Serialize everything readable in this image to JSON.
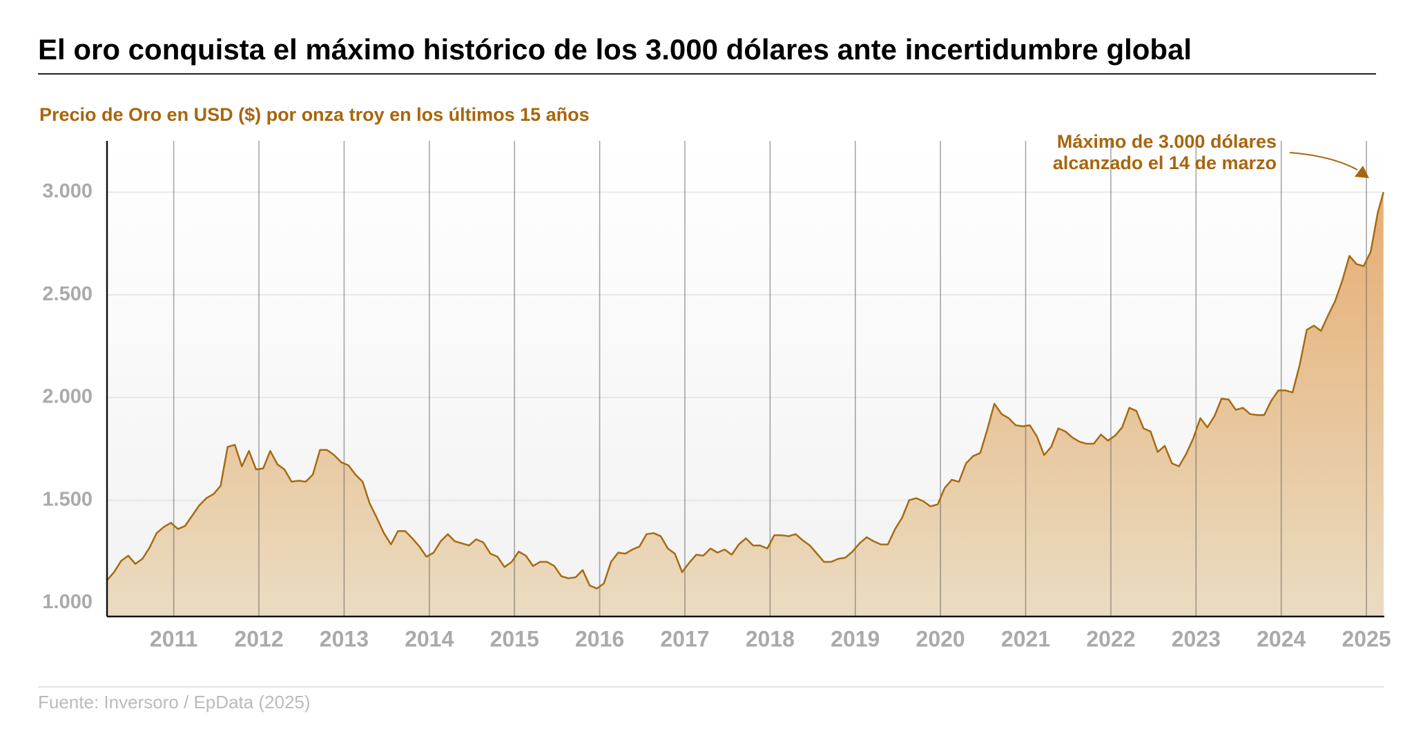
{
  "chart_data": {
    "type": "area",
    "title": "El oro conquista el máximo histórico de los 3.000 dólares ante incertidumbre global",
    "subtitle": "Precio de Oro en USD ($) por onza troy en los últimos 15 años",
    "annotation": [
      "Máximo de 3.000 dólares",
      "alcanzado el 14 de marzo"
    ],
    "source": "Fuente: Inversoro / EpData (2025)",
    "color": "#a66a10",
    "grid": true,
    "xlim": [
      2010.217,
      2025.21
    ],
    "xticks": [
      2011,
      2012,
      2013,
      2014,
      2015,
      2016,
      2017,
      2018,
      2019,
      2020,
      2021,
      2022,
      2023,
      2024,
      2025
    ],
    "ylim": [
      934,
      3250
    ],
    "yticks": [
      {
        "value": 1000,
        "label": "1.000"
      },
      {
        "value": 1500,
        "label": "1.500"
      },
      {
        "value": 2000,
        "label": "2.000"
      },
      {
        "value": 2500,
        "label": "2.500"
      },
      {
        "value": 3000,
        "label": "3.000"
      }
    ],
    "x": [
      2010.217,
      2010.3,
      2010.383,
      2010.467,
      2010.55,
      2010.633,
      2010.717,
      2010.8,
      2010.883,
      2010.967,
      2011.05,
      2011.133,
      2011.217,
      2011.3,
      2011.383,
      2011.467,
      2011.55,
      2011.633,
      2011.717,
      2011.8,
      2011.883,
      2011.967,
      2012.05,
      2012.133,
      2012.217,
      2012.3,
      2012.383,
      2012.467,
      2012.55,
      2012.633,
      2012.717,
      2012.8,
      2012.883,
      2012.967,
      2013.05,
      2013.133,
      2013.217,
      2013.3,
      2013.383,
      2013.467,
      2013.55,
      2013.633,
      2013.717,
      2013.8,
      2013.883,
      2013.967,
      2014.05,
      2014.133,
      2014.217,
      2014.3,
      2014.383,
      2014.467,
      2014.55,
      2014.633,
      2014.717,
      2014.8,
      2014.883,
      2014.967,
      2015.05,
      2015.133,
      2015.217,
      2015.3,
      2015.383,
      2015.467,
      2015.55,
      2015.633,
      2015.717,
      2015.8,
      2015.883,
      2015.967,
      2016.05,
      2016.133,
      2016.217,
      2016.3,
      2016.383,
      2016.467,
      2016.55,
      2016.633,
      2016.717,
      2016.8,
      2016.883,
      2016.967,
      2017.05,
      2017.133,
      2017.217,
      2017.3,
      2017.383,
      2017.467,
      2017.55,
      2017.633,
      2017.717,
      2017.8,
      2017.883,
      2017.967,
      2018.05,
      2018.133,
      2018.217,
      2018.3,
      2018.383,
      2018.467,
      2018.55,
      2018.633,
      2018.717,
      2018.8,
      2018.883,
      2018.967,
      2019.05,
      2019.133,
      2019.217,
      2019.3,
      2019.383,
      2019.467,
      2019.55,
      2019.633,
      2019.717,
      2019.8,
      2019.883,
      2019.967,
      2020.05,
      2020.133,
      2020.217,
      2020.3,
      2020.383,
      2020.467,
      2020.55,
      2020.633,
      2020.717,
      2020.8,
      2020.883,
      2020.967,
      2021.05,
      2021.133,
      2021.217,
      2021.3,
      2021.383,
      2021.467,
      2021.55,
      2021.633,
      2021.717,
      2021.8,
      2021.883,
      2021.967,
      2022.05,
      2022.133,
      2022.217,
      2022.3,
      2022.383,
      2022.467,
      2022.55,
      2022.633,
      2022.717,
      2022.8,
      2022.883,
      2022.967,
      2023.05,
      2023.133,
      2023.217,
      2023.3,
      2023.383,
      2023.467,
      2023.55,
      2023.633,
      2023.717,
      2023.8,
      2023.883,
      2023.967,
      2024.05,
      2024.133,
      2024.217,
      2024.3,
      2024.383,
      2024.467,
      2024.55,
      2024.633,
      2024.717,
      2024.8,
      2024.883,
      2024.967,
      2025.05,
      2025.133,
      2025.2
    ],
    "values": [
      1110,
      1150,
      1205,
      1230,
      1190,
      1215,
      1270,
      1340,
      1370,
      1390,
      1360,
      1375,
      1425,
      1475,
      1510,
      1530,
      1570,
      1760,
      1770,
      1665,
      1740,
      1650,
      1655,
      1740,
      1675,
      1650,
      1590,
      1595,
      1590,
      1625,
      1745,
      1745,
      1720,
      1685,
      1670,
      1625,
      1590,
      1485,
      1415,
      1340,
      1285,
      1350,
      1350,
      1315,
      1275,
      1225,
      1245,
      1300,
      1335,
      1300,
      1290,
      1280,
      1310,
      1295,
      1240,
      1225,
      1175,
      1200,
      1250,
      1230,
      1180,
      1200,
      1200,
      1180,
      1130,
      1120,
      1125,
      1160,
      1085,
      1070,
      1095,
      1200,
      1245,
      1240,
      1260,
      1275,
      1335,
      1340,
      1325,
      1265,
      1240,
      1150,
      1195,
      1235,
      1230,
      1265,
      1245,
      1260,
      1235,
      1285,
      1315,
      1280,
      1280,
      1265,
      1330,
      1330,
      1325,
      1335,
      1305,
      1280,
      1240,
      1200,
      1200,
      1215,
      1220,
      1250,
      1290,
      1320,
      1300,
      1285,
      1285,
      1360,
      1415,
      1500,
      1510,
      1495,
      1470,
      1480,
      1560,
      1600,
      1590,
      1680,
      1715,
      1730,
      1845,
      1970,
      1920,
      1900,
      1865,
      1860,
      1865,
      1810,
      1720,
      1760,
      1850,
      1835,
      1805,
      1785,
      1775,
      1775,
      1820,
      1790,
      1815,
      1855,
      1950,
      1935,
      1850,
      1835,
      1735,
      1765,
      1680,
      1665,
      1725,
      1800,
      1900,
      1855,
      1910,
      1995,
      1990,
      1940,
      1950,
      1920,
      1915,
      1915,
      1985,
      2035,
      2035,
      2025,
      2160,
      2330,
      2350,
      2325,
      2400,
      2470,
      2570,
      2690,
      2650,
      2640,
      2710,
      2900,
      3000
    ]
  }
}
